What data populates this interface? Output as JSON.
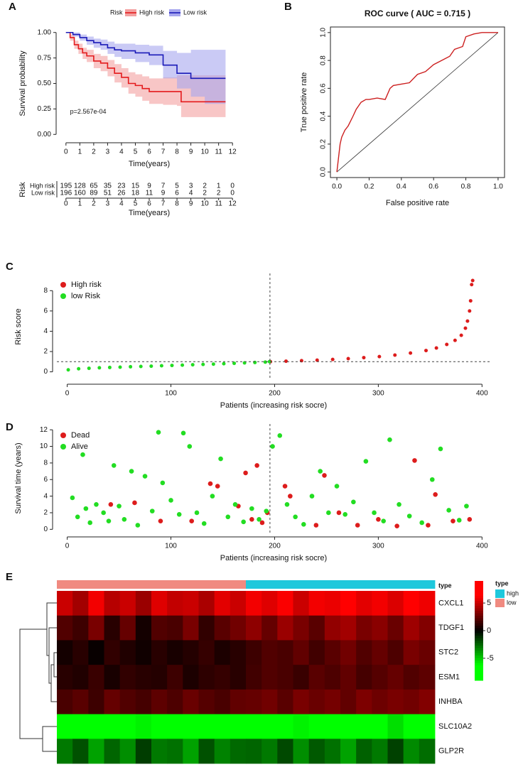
{
  "chart_data": [
    {
      "type": "line",
      "panel": "A",
      "legend_title": "Risk",
      "legend": "top",
      "xlabel": "Time(years)",
      "ylabel": "Survival probability",
      "annotation": "p=2.567e-04",
      "xlim": [
        -0.4,
        12.4
      ],
      "ylim": [
        -0.04,
        1.04
      ],
      "xticks": [
        0,
        1,
        2,
        3,
        4,
        5,
        6,
        7,
        8,
        9,
        10,
        11,
        12
      ],
      "yticks": [
        {
          "value": 0,
          "label": "0.00"
        },
        {
          "value": 0.25,
          "label": "0.25"
        },
        {
          "value": 0.5,
          "label": "0.50"
        },
        {
          "value": 0.75,
          "label": "0.75"
        },
        {
          "value": 1,
          "label": "1.00"
        }
      ],
      "series": [
        {
          "name": "High risk",
          "color": "#e41a1c",
          "band_color": "#f3a0a0",
          "x": [
            0,
            0.3,
            0.6,
            0.9,
            1.2,
            1.5,
            2,
            2.5,
            3,
            3.5,
            4,
            4.5,
            5,
            5.5,
            6,
            7,
            8,
            8.3,
            11.5
          ],
          "values": [
            1,
            0.95,
            0.88,
            0.84,
            0.8,
            0.77,
            0.72,
            0.7,
            0.65,
            0.6,
            0.56,
            0.5,
            0.48,
            0.45,
            0.42,
            0.42,
            0.42,
            0.32,
            0.32
          ],
          "lower": [
            1,
            0.92,
            0.84,
            0.79,
            0.74,
            0.71,
            0.65,
            0.62,
            0.57,
            0.51,
            0.46,
            0.4,
            0.37,
            0.33,
            0.3,
            0.29,
            0.28,
            0.17,
            0.17
          ],
          "upper": [
            1,
            0.98,
            0.92,
            0.89,
            0.85,
            0.83,
            0.79,
            0.77,
            0.73,
            0.69,
            0.65,
            0.61,
            0.59,
            0.57,
            0.55,
            0.56,
            0.58,
            0.58,
            0.58
          ]
        },
        {
          "name": "Low risk",
          "color": "#1a1ab8",
          "band_color": "#a6a6ee",
          "x": [
            0,
            0.5,
            1,
            1.5,
            2,
            2.5,
            3,
            3.5,
            4,
            5,
            6,
            7,
            8,
            9,
            10,
            11.5
          ],
          "values": [
            1,
            0.98,
            0.95,
            0.92,
            0.9,
            0.88,
            0.85,
            0.83,
            0.82,
            0.8,
            0.78,
            0.68,
            0.6,
            0.55,
            0.55,
            0.55
          ],
          "lower": [
            1,
            0.96,
            0.92,
            0.88,
            0.85,
            0.83,
            0.79,
            0.76,
            0.74,
            0.71,
            0.68,
            0.55,
            0.45,
            0.37,
            0.3,
            0.3
          ],
          "upper": [
            1,
            1,
            0.98,
            0.96,
            0.94,
            0.93,
            0.91,
            0.89,
            0.89,
            0.88,
            0.87,
            0.82,
            0.8,
            0.83,
            0.83,
            0.83
          ]
        }
      ],
      "risk_table": {
        "title": "Risk",
        "xlabel": "Time(years)",
        "rows": [
          {
            "name": "High risk",
            "values": [
              195,
              128,
              65,
              35,
              23,
              15,
              9,
              7,
              5,
              3,
              2,
              1,
              0
            ]
          },
          {
            "name": "Low risk",
            "values": [
              196,
              160,
              89,
              51,
              26,
              18,
              11,
              9,
              6,
              4,
              2,
              2,
              0
            ]
          }
        ]
      }
    },
    {
      "type": "line",
      "panel": "B",
      "title": "ROC curve ( AUC =  0.715 )",
      "xlabel": "False positive rate",
      "ylabel": "True positive rate",
      "xlim": [
        -0.04,
        1.04
      ],
      "ylim": [
        -0.04,
        1.04
      ],
      "xticks": [
        {
          "value": 0,
          "label": "0.0"
        },
        {
          "value": 0.2,
          "label": "0.2"
        },
        {
          "value": 0.4,
          "label": "0.4"
        },
        {
          "value": 0.6,
          "label": "0.6"
        },
        {
          "value": 0.8,
          "label": "0.8"
        },
        {
          "value": 1,
          "label": "1.0"
        }
      ],
      "yticks": [
        {
          "value": 0,
          "label": "0.0"
        },
        {
          "value": 0.2,
          "label": "0.2"
        },
        {
          "value": 0.4,
          "label": "0.4"
        },
        {
          "value": 0.6,
          "label": "0.6"
        },
        {
          "value": 0.8,
          "label": "0.8"
        },
        {
          "value": 1,
          "label": "1.0"
        }
      ],
      "color": "#cc1f1f",
      "x": [
        0,
        0.01,
        0.02,
        0.03,
        0.05,
        0.07,
        0.1,
        0.12,
        0.15,
        0.18,
        0.2,
        0.25,
        0.3,
        0.33,
        0.35,
        0.4,
        0.45,
        0.5,
        0.55,
        0.6,
        0.65,
        0.7,
        0.73,
        0.78,
        0.8,
        0.85,
        0.9,
        0.95,
        1.0
      ],
      "values": [
        0,
        0.1,
        0.2,
        0.25,
        0.3,
        0.33,
        0.4,
        0.45,
        0.5,
        0.52,
        0.52,
        0.53,
        0.52,
        0.6,
        0.62,
        0.63,
        0.64,
        0.7,
        0.72,
        0.77,
        0.8,
        0.83,
        0.88,
        0.9,
        0.97,
        0.99,
        1.0,
        1.0,
        1.0
      ]
    },
    {
      "type": "scatter",
      "panel": "C",
      "xlabel": "Patients (increasing risk socre)",
      "ylabel": "Risk score",
      "legend": "top-left",
      "xlim": [
        -10,
        408
      ],
      "ylim": [
        -0.8,
        9.7
      ],
      "xticks": [
        0,
        100,
        200,
        300,
        400
      ],
      "yticks": [
        0,
        2,
        4,
        6,
        8
      ],
      "cutoff_x": 195.5,
      "cutoff_y": 1,
      "series": [
        {
          "name": "High risk",
          "color": "#dd1c1c",
          "x": [
            196,
            211,
            226,
            241,
            256,
            271,
            286,
            301,
            316,
            331,
            346,
            356,
            366,
            374,
            380,
            384,
            386,
            388,
            389,
            390,
            391
          ],
          "values": [
            1.0,
            1.05,
            1.1,
            1.15,
            1.22,
            1.3,
            1.4,
            1.5,
            1.65,
            1.85,
            2.1,
            2.35,
            2.7,
            3.1,
            3.6,
            4.3,
            5.0,
            6.0,
            7.0,
            8.6,
            9.0
          ]
        },
        {
          "name": "low Risk",
          "color": "#22dd22",
          "x": [
            1,
            11,
            21,
            31,
            41,
            51,
            61,
            71,
            81,
            91,
            101,
            111,
            121,
            131,
            141,
            151,
            161,
            171,
            181,
            191,
            195
          ],
          "values": [
            0.2,
            0.3,
            0.35,
            0.4,
            0.43,
            0.46,
            0.5,
            0.53,
            0.56,
            0.6,
            0.63,
            0.66,
            0.7,
            0.73,
            0.76,
            0.8,
            0.84,
            0.88,
            0.92,
            0.96,
            1.0
          ]
        }
      ]
    },
    {
      "type": "scatter",
      "panel": "D",
      "xlabel": "Patients (increasing risk socre)",
      "ylabel": "Survival time (years)",
      "legend": "top-left",
      "xlim": [
        -10,
        408
      ],
      "ylim": [
        -0.4,
        12.7
      ],
      "xticks": [
        0,
        100,
        200,
        300,
        400
      ],
      "yticks": [
        0,
        2,
        4,
        6,
        8,
        10,
        12
      ],
      "cutoff_x": 195.5,
      "series": [
        {
          "name": "Dead",
          "color": "#dd1c1c",
          "x": [
            42,
            65,
            90,
            120,
            138,
            145,
            165,
            172,
            178,
            183,
            188,
            193,
            210,
            215,
            240,
            248,
            262,
            280,
            300,
            318,
            335,
            348,
            355,
            372,
            388
          ],
          "values": [
            3,
            3.2,
            1,
            1,
            5.5,
            5.2,
            2.8,
            6.8,
            1.2,
            7.7,
            0.8,
            2,
            5.2,
            4,
            0.5,
            6.5,
            2,
            0.5,
            1.2,
            0.4,
            8.3,
            0.5,
            4.2,
            1,
            1.2
          ]
        },
        {
          "name": "Alive",
          "color": "#22dd22",
          "x": [
            5,
            10,
            15,
            18,
            22,
            28,
            35,
            40,
            45,
            50,
            55,
            62,
            68,
            75,
            82,
            88,
            92,
            100,
            108,
            112,
            118,
            125,
            132,
            140,
            148,
            155,
            162,
            170,
            178,
            185,
            192,
            198,
            205,
            212,
            220,
            228,
            236,
            244,
            252,
            260,
            268,
            276,
            288,
            296,
            305,
            311,
            320,
            330,
            342,
            352,
            360,
            368,
            378,
            385
          ],
          "values": [
            3.8,
            1.5,
            9,
            2.5,
            0.8,
            3,
            2,
            1,
            7.7,
            2.8,
            1.2,
            7,
            0.5,
            6.4,
            2.2,
            11.7,
            5.6,
            3.5,
            1.8,
            11.6,
            10,
            2,
            0.7,
            4,
            8.5,
            1.5,
            3,
            0.9,
            2.5,
            1.2,
            2.2,
            10,
            11.3,
            3,
            1.5,
            0.6,
            4,
            7,
            2,
            5.2,
            1.8,
            3.3,
            8.2,
            2,
            1,
            10.8,
            3,
            1.6,
            0.8,
            6,
            9.7,
            2.3,
            1.1,
            2.8
          ]
        }
      ]
    },
    {
      "type": "heatmap",
      "panel": "E",
      "annotation_label": "type",
      "legend_title": "type",
      "types": [
        {
          "name": "high",
          "color": "#1ec8dc"
        },
        {
          "name": "low",
          "color": "#f08a80"
        }
      ],
      "column_type": [
        "low",
        "low",
        "low",
        "low",
        "low",
        "low",
        "low",
        "low",
        "low",
        "low",
        "low",
        "low",
        "high",
        "high",
        "high",
        "high",
        "high",
        "high",
        "high",
        "high",
        "high",
        "high",
        "high",
        "high"
      ],
      "rows": [
        "CXCL1",
        "TDGF1",
        "STC2",
        "ESM1",
        "INHBA",
        "SLC10A2",
        "GLP2R"
      ],
      "zlim": [
        -9,
        9
      ],
      "zticks": [
        5,
        0,
        -5
      ],
      "values": [
        [
          5,
          4,
          6,
          4.5,
          5,
          3.8,
          5.5,
          4.8,
          5,
          4.2,
          5.6,
          5,
          6,
          5.5,
          6.2,
          5,
          6,
          5.8,
          6.5,
          5.6,
          6,
          5.4,
          6.3,
          5.9
        ],
        [
          2,
          1.5,
          3,
          1,
          2.5,
          0.5,
          2,
          1.8,
          3,
          1.2,
          2.2,
          2.8,
          3.5,
          2.5,
          3.8,
          3,
          2.2,
          3.6,
          4,
          3,
          3.4,
          2.6,
          3.9,
          3.2
        ],
        [
          0.5,
          1,
          0.2,
          1.2,
          0.8,
          0.4,
          1,
          0.6,
          0.9,
          1.3,
          0.7,
          1,
          1.5,
          2,
          1.8,
          2.4,
          1.6,
          2.2,
          2.8,
          2,
          2.5,
          1.9,
          3,
          2.6
        ],
        [
          1,
          0.8,
          1.4,
          0.6,
          1.2,
          1,
          0.9,
          1.5,
          0.7,
          1.1,
          1.3,
          1,
          1.6,
          2,
          1.8,
          1.4,
          2.2,
          1.9,
          2.4,
          1.7,
          2.1,
          2.5,
          2,
          2.3
        ],
        [
          1.8,
          2.2,
          1.5,
          2.5,
          2,
          1.7,
          2.3,
          1.9,
          2.6,
          2.1,
          1.8,
          2.4,
          2.5,
          2.8,
          2.2,
          3,
          2.6,
          2.9,
          2.4,
          3.1,
          2.7,
          3,
          2.8,
          3.2
        ],
        [
          -7,
          -7,
          -6.5,
          -7,
          -7,
          -6,
          -7,
          -7,
          -6.8,
          -7,
          -7,
          -6.5,
          -7,
          -6.8,
          -7,
          -6,
          -7,
          -6.5,
          -7,
          -7,
          -6.8,
          -5.5,
          -7,
          -6.8
        ],
        [
          -3,
          -2,
          -4,
          -2.5,
          -3.5,
          -1.5,
          -3,
          -2.8,
          -4,
          -2,
          -3.2,
          -2.6,
          -2.5,
          -3,
          -1.8,
          -3.5,
          -2.2,
          -2.8,
          -4,
          -2.4,
          -3,
          -1.6,
          -3.4,
          -2.7
        ]
      ]
    }
  ]
}
